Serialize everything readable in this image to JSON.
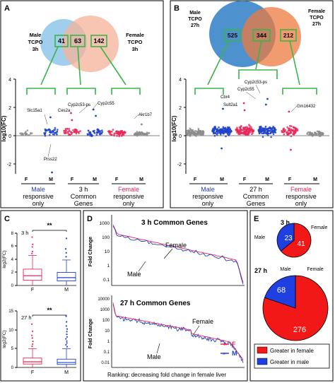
{
  "panels": {
    "A": "A",
    "B": "B",
    "C": "C",
    "D": "D",
    "E": "E"
  },
  "colors": {
    "male": "#2143c7",
    "female": "#e8285a",
    "gray": "#8c8c8c",
    "venn_blue_A": "#8fc6ea",
    "venn_orange_A": "#f6b29a",
    "venn_blue_B": "#3a86c9",
    "venn_orange_B": "#ec7a3d",
    "green": "#39b54a",
    "pie_red": "#f21818",
    "pie_blue": "#1f3fe0"
  },
  "panelA": {
    "venn_left_label": [
      "Male",
      "TCPO",
      "3h"
    ],
    "venn_right_label": [
      "Female",
      "TCPO",
      "3h"
    ],
    "counts": [
      "41",
      "63",
      "142"
    ],
    "ylabel": "log10(FC)",
    "yticks": [
      "4",
      "2",
      "0",
      "-2"
    ],
    "genes": [
      "Slc15a1",
      "Cyp2c53-ps",
      "Cyp2c55",
      "Ces2a",
      "Akr1b7",
      "Prss22"
    ],
    "xticks": [
      "F",
      "M",
      "F",
      "M",
      "F",
      "M"
    ],
    "groups": [
      {
        "line1": "Male",
        "line2": "responsive",
        "line3": "only"
      },
      {
        "line1": "3 h",
        "line2": "Common",
        "line3": "Genes"
      },
      {
        "line1": "Female",
        "line2": "responsive",
        "line3": "only"
      }
    ]
  },
  "panelB": {
    "venn_left_label": [
      "Male",
      "TCPO",
      "27h"
    ],
    "venn_right_label": [
      "Female",
      "TCPO",
      "27h"
    ],
    "counts": [
      "525",
      "344",
      "212"
    ],
    "ylabel": "log10(FC)",
    "yticks": [
      "4",
      "2",
      "0",
      "-2"
    ],
    "genes": [
      "Cyp2c53-ps",
      "Cyp2c55",
      "Sult2a1",
      "Gm16432",
      "Cbr4"
    ],
    "xticks": [
      "F",
      "M",
      "F",
      "M",
      "F",
      "M"
    ],
    "groups": [
      {
        "line1": "Male",
        "line2": "responsive",
        "line3": "only"
      },
      {
        "line1": "27 h",
        "line2": "Common",
        "line3": "Genes"
      },
      {
        "line1": "Female",
        "line2": "responsive",
        "line3": "only"
      }
    ]
  },
  "panelC": {
    "top": {
      "label": "3 h",
      "sig": "**",
      "ylabel": "log2(FC)",
      "yticks": [
        "8",
        "6",
        "4",
        "2",
        "0"
      ]
    },
    "bottom": {
      "label": "27 h",
      "sig": "**",
      "ylabel": "log2(FC)",
      "yticks": [
        "15",
        "10",
        "5",
        "0"
      ]
    },
    "xticks": [
      "F",
      "M"
    ]
  },
  "panelD": {
    "top_title": "3 h Common Genes",
    "bottom_title": "27 h Common Genes",
    "ylabel": "Fold Change",
    "top_yticks": [
      "1000",
      "100",
      "10",
      "1",
      "0.1"
    ],
    "bottom_yticks": [
      "10000",
      "1000",
      "100",
      "10",
      "1",
      "0.1",
      "0.01"
    ],
    "female_label": "Female",
    "male_label": "Male",
    "legend_f": "F",
    "legend_m": "M",
    "xlabel": "Ranking: decreasing fold change in female liver"
  },
  "panelE": {
    "pie_3h": {
      "title": "3 h",
      "male_label": "Male",
      "female_label": "Female",
      "male_value": "23",
      "female_value": "41"
    },
    "pie_27h": {
      "title": "27 h",
      "male_label": "Male",
      "female_label": "Female",
      "male_value": "68",
      "female_value": "276"
    },
    "legend": [
      {
        "label": "Greater in female",
        "color": "#f21818"
      },
      {
        "label": "Greater in male",
        "color": "#1f3fe0"
      }
    ]
  },
  "chart_data": [
    {
      "type": "scatter",
      "panel": "A",
      "ylabel": "log10(FC)",
      "ylim": [
        -2.8,
        4
      ],
      "categories": [
        "F",
        "M",
        "F",
        "M",
        "F",
        "M"
      ],
      "groups": [
        "Male responsive only",
        "3 h Common Genes",
        "Female responsive only"
      ]
    },
    {
      "type": "scatter",
      "panel": "B",
      "ylabel": "log10(FC)",
      "ylim": [
        -2.8,
        4
      ],
      "categories": [
        "F",
        "M",
        "F",
        "M",
        "F",
        "M"
      ],
      "groups": [
        "Male responsive only",
        "27 h Common Genes",
        "Female responsive only"
      ]
    },
    {
      "type": "box",
      "panel": "C",
      "series": [
        {
          "name": "3 h",
          "categories": [
            "F",
            "M"
          ],
          "median": [
            1.5,
            1.2
          ],
          "q1": [
            0.8,
            0.7
          ],
          "q3": [
            2.5,
            2.0
          ],
          "ylim": [
            0,
            8
          ]
        },
        {
          "name": "27 h",
          "categories": [
            "F",
            "M"
          ],
          "median": [
            1.5,
            1.3
          ],
          "q1": [
            0.9,
            0.8
          ],
          "q3": [
            2.5,
            2.2
          ],
          "ylim": [
            0,
            15
          ]
        }
      ]
    },
    {
      "type": "line",
      "panel": "D",
      "yscale": "log",
      "series": [
        {
          "name": "F"
        },
        {
          "name": "M"
        }
      ]
    },
    {
      "type": "pie",
      "panel": "E",
      "series": [
        {
          "name": "3 h",
          "categories": [
            "Greater in female",
            "Greater in male"
          ],
          "values": [
            41,
            23
          ]
        },
        {
          "name": "27 h",
          "categories": [
            "Greater in female",
            "Greater in male"
          ],
          "values": [
            276,
            68
          ]
        }
      ]
    }
  ]
}
